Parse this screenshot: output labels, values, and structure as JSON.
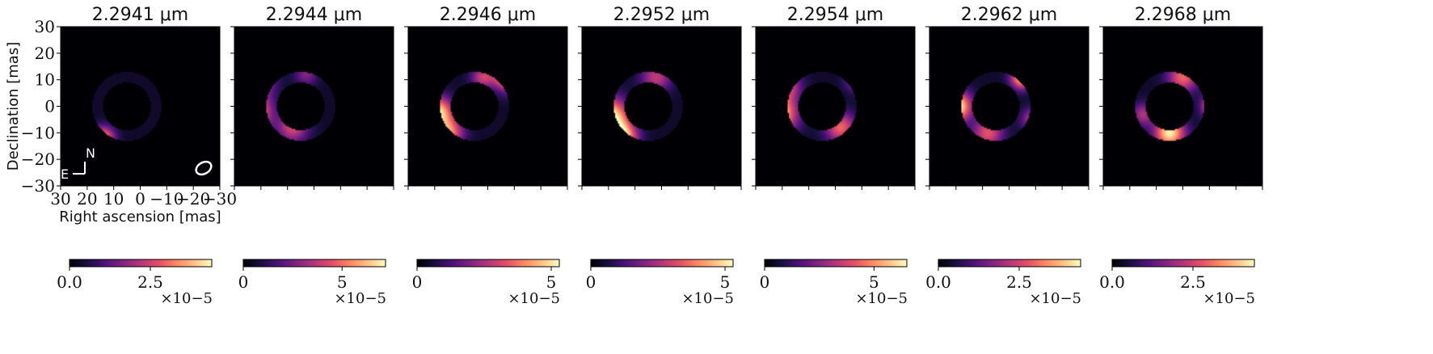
{
  "chart_data": {
    "type": "heatmap",
    "colormap": "magma",
    "panels": [
      {
        "title": "2.2941 μm",
        "cbar_ticks": [
          "0.0",
          "2.5"
        ],
        "cbar_max": 4.4,
        "cbar_exponent": "×10−5",
        "blobs": [
          {
            "x": 27,
            "y": -2,
            "v": 1.0,
            "s": 3
          },
          {
            "x": 14,
            "y": -12,
            "v": 0.75,
            "s": 3
          },
          {
            "x": 25,
            "y": 6,
            "v": 0.35,
            "s": 3
          }
        ]
      },
      {
        "title": "2.2944 μm",
        "cbar_ticks": [
          "0",
          "5"
        ],
        "cbar_max": 7.2,
        "cbar_exponent": "×10−5",
        "blobs": [
          {
            "x": 24,
            "y": -2,
            "v": 1.0,
            "s": 5
          },
          {
            "x": 8,
            "y": -8,
            "v": 0.5,
            "s": 4
          },
          {
            "x": 20,
            "y": 10,
            "v": 0.4,
            "s": 4
          },
          {
            "x": 3,
            "y": 12,
            "v": 0.3,
            "s": 3
          }
        ]
      },
      {
        "title": "2.2946 μm",
        "cbar_ticks": [
          "0",
          "5"
        ],
        "cbar_max": 5.3,
        "cbar_exponent": "×10−5",
        "blobs": [
          {
            "x": -8,
            "y": 12,
            "v": 1.0,
            "s": 4
          },
          {
            "x": 19,
            "y": -2,
            "v": 0.85,
            "s": 4
          },
          {
            "x": 15,
            "y": -10,
            "v": 0.7,
            "s": 4
          },
          {
            "x": 2,
            "y": 11,
            "v": 0.45,
            "s": 3
          }
        ]
      },
      {
        "title": "2.2952 μm",
        "cbar_ticks": [
          "0",
          "5"
        ],
        "cbar_max": 5.3,
        "cbar_exponent": "×10−5",
        "blobs": [
          {
            "x": 20,
            "y": -4,
            "v": 1.0,
            "s": 5
          },
          {
            "x": 15,
            "y": -12,
            "v": 0.9,
            "s": 4
          },
          {
            "x": 2,
            "y": 11,
            "v": 0.45,
            "s": 4
          }
        ]
      },
      {
        "title": "2.2954 μm",
        "cbar_ticks": [
          "0",
          "5"
        ],
        "cbar_max": 6.5,
        "cbar_exponent": "×10−5",
        "blobs": [
          {
            "x": 22,
            "y": -3,
            "v": 1.0,
            "s": 5
          },
          {
            "x": -2,
            "y": -8,
            "v": 0.6,
            "s": 4
          },
          {
            "x": 19,
            "y": 8,
            "v": 0.55,
            "s": 4
          },
          {
            "x": -8,
            "y": 10,
            "v": 0.4,
            "s": 3
          }
        ]
      },
      {
        "title": "2.2962 μm",
        "cbar_ticks": [
          "0.0",
          "2.5"
        ],
        "cbar_max": 4.4,
        "cbar_exponent": "×10−5",
        "blobs": [
          {
            "x": 20,
            "y": 0,
            "v": 1.0,
            "s": 4
          },
          {
            "x": -5,
            "y": 11,
            "v": 0.9,
            "s": 3
          },
          {
            "x": 8,
            "y": -10,
            "v": 0.55,
            "s": 4
          },
          {
            "x": -9,
            "y": -5,
            "v": 0.45,
            "s": 3
          }
        ]
      },
      {
        "title": "2.2968 μm",
        "cbar_ticks": [
          "0.0",
          "2.5"
        ],
        "cbar_max": 4.4,
        "cbar_exponent": "×10−5",
        "blobs": [
          {
            "x": -12,
            "y": 0,
            "v": 1.0,
            "s": 3
          },
          {
            "x": 5,
            "y": -10,
            "v": 0.9,
            "s": 4
          },
          {
            "x": 0,
            "y": 11,
            "v": 0.6,
            "s": 4
          },
          {
            "x": 15,
            "y": -3,
            "v": 0.4,
            "s": 3
          }
        ]
      }
    ],
    "xlabel": "Right ascension [mas]",
    "ylabel": "Declination [mas]",
    "x_ticks": [
      "30",
      "20",
      "10",
      "0",
      "−10",
      "−20",
      "−30"
    ],
    "y_ticks": [
      "30",
      "20",
      "10",
      "0",
      "−10",
      "−20",
      "−30"
    ],
    "xlim": [
      30,
      -30
    ],
    "ylim": [
      -30,
      30
    ],
    "ring": {
      "cx": 5,
      "cy": 0,
      "r_inner": 9,
      "r_outer": 13
    },
    "compass": {
      "north": "N",
      "east": "E"
    }
  }
}
